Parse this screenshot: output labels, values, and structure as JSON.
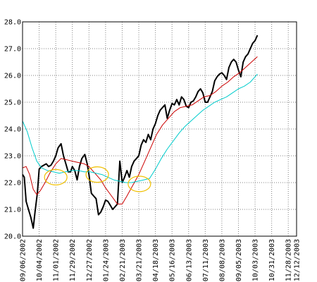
{
  "chart_data": {
    "type": "line",
    "title": "",
    "xlabel": "",
    "ylabel": "",
    "ylim": [
      20.0,
      28.0
    ],
    "yticks": [
      "20.0",
      "21.0",
      "22.0",
      "23.0",
      "24.0",
      "25.0",
      "26.0",
      "27.0",
      "28.0"
    ],
    "xlim": [
      "2002-09-06",
      "2003-12-12"
    ],
    "xticks": [
      {
        "label": "09/06/2002",
        "date": "2002-09-06"
      },
      {
        "label": "10/04/2002",
        "date": "2002-10-04"
      },
      {
        "label": "11/01/2002",
        "date": "2002-11-01"
      },
      {
        "label": "11/29/2002",
        "date": "2002-11-29"
      },
      {
        "label": "12/27/2002",
        "date": "2002-12-27"
      },
      {
        "label": "01/24/2003",
        "date": "2003-01-24"
      },
      {
        "label": "02/21/2003",
        "date": "2003-02-21"
      },
      {
        "label": "03/21/2003",
        "date": "2003-03-21"
      },
      {
        "label": "04/18/2003",
        "date": "2003-04-18"
      },
      {
        "label": "05/16/2003",
        "date": "2003-05-16"
      },
      {
        "label": "06/13/2003",
        "date": "2003-06-13"
      },
      {
        "label": "07/11/2003",
        "date": "2003-07-11"
      },
      {
        "label": "08/08/2003",
        "date": "2003-08-08"
      },
      {
        "label": "09/05/2003",
        "date": "2003-09-05"
      },
      {
        "label": "10/03/2003",
        "date": "2003-10-03"
      },
      {
        "label": "10/31/2003",
        "date": "2003-10-31"
      },
      {
        "label": "11/28/2003",
        "date": "2003-11-28"
      },
      {
        "label": "12/12/2003",
        "date": "2003-12-12"
      }
    ],
    "grid": true,
    "legend": "none",
    "series": [
      {
        "color": "#000000",
        "width": 2,
        "points": [
          [
            "2002-09-06",
            22.3
          ],
          [
            "2002-09-09",
            22.2
          ],
          [
            "2002-09-12",
            21.3
          ],
          [
            "2002-09-16",
            21.0
          ],
          [
            "2002-09-20",
            20.7
          ],
          [
            "2002-09-24",
            20.3
          ],
          [
            "2002-09-27",
            20.9
          ],
          [
            "2002-10-01",
            21.6
          ],
          [
            "2002-10-04",
            22.5
          ],
          [
            "2002-10-08",
            22.6
          ],
          [
            "2002-10-12",
            22.65
          ],
          [
            "2002-10-16",
            22.7
          ],
          [
            "2002-10-20",
            22.6
          ],
          [
            "2002-10-24",
            22.65
          ],
          [
            "2002-10-28",
            22.8
          ],
          [
            "2002-11-01",
            23.0
          ],
          [
            "2002-11-05",
            23.3
          ],
          [
            "2002-11-10",
            23.45
          ],
          [
            "2002-11-14",
            23.0
          ],
          [
            "2002-11-18",
            22.7
          ],
          [
            "2002-11-22",
            22.4
          ],
          [
            "2002-11-26",
            22.4
          ],
          [
            "2002-11-29",
            22.6
          ],
          [
            "2002-12-03",
            22.45
          ],
          [
            "2002-12-07",
            22.1
          ],
          [
            "2002-12-11",
            22.6
          ],
          [
            "2002-12-15",
            22.9
          ],
          [
            "2002-12-20",
            23.05
          ],
          [
            "2002-12-24",
            22.7
          ],
          [
            "2002-12-27",
            22.3
          ],
          [
            "2002-12-31",
            21.6
          ],
          [
            "2003-01-04",
            21.5
          ],
          [
            "2003-01-08",
            21.4
          ],
          [
            "2003-01-12",
            20.8
          ],
          [
            "2003-01-16",
            20.9
          ],
          [
            "2003-01-20",
            21.1
          ],
          [
            "2003-01-24",
            21.35
          ],
          [
            "2003-01-28",
            21.3
          ],
          [
            "2003-02-01",
            21.15
          ],
          [
            "2003-02-05",
            21.0
          ],
          [
            "2003-02-09",
            21.1
          ],
          [
            "2003-02-13",
            21.2
          ],
          [
            "2003-02-17",
            22.8
          ],
          [
            "2003-02-21",
            22.0
          ],
          [
            "2003-02-25",
            22.2
          ],
          [
            "2003-03-01",
            22.45
          ],
          [
            "2003-03-05",
            22.2
          ],
          [
            "2003-03-09",
            22.6
          ],
          [
            "2003-03-13",
            22.8
          ],
          [
            "2003-03-17",
            22.9
          ],
          [
            "2003-03-21",
            23.0
          ],
          [
            "2003-03-25",
            23.4
          ],
          [
            "2003-03-29",
            23.6
          ],
          [
            "2003-04-02",
            23.5
          ],
          [
            "2003-04-06",
            23.8
          ],
          [
            "2003-04-10",
            23.6
          ],
          [
            "2003-04-14",
            24.0
          ],
          [
            "2003-04-18",
            24.2
          ],
          [
            "2003-04-22",
            24.5
          ],
          [
            "2003-04-26",
            24.7
          ],
          [
            "2003-04-30",
            24.8
          ],
          [
            "2003-05-04",
            24.9
          ],
          [
            "2003-05-08",
            24.4
          ],
          [
            "2003-05-12",
            24.7
          ],
          [
            "2003-05-16",
            24.95
          ],
          [
            "2003-05-20",
            24.9
          ],
          [
            "2003-05-24",
            25.1
          ],
          [
            "2003-05-28",
            24.9
          ],
          [
            "2003-06-01",
            25.2
          ],
          [
            "2003-06-05",
            25.1
          ],
          [
            "2003-06-09",
            24.85
          ],
          [
            "2003-06-13",
            24.8
          ],
          [
            "2003-06-17",
            25.0
          ],
          [
            "2003-06-21",
            25.05
          ],
          [
            "2003-06-25",
            25.2
          ],
          [
            "2003-06-29",
            25.4
          ],
          [
            "2003-07-03",
            25.5
          ],
          [
            "2003-07-07",
            25.35
          ],
          [
            "2003-07-11",
            25.0
          ],
          [
            "2003-07-15",
            25.0
          ],
          [
            "2003-07-19",
            25.2
          ],
          [
            "2003-07-23",
            25.4
          ],
          [
            "2003-07-27",
            25.8
          ],
          [
            "2003-07-31",
            25.95
          ],
          [
            "2003-08-04",
            26.05
          ],
          [
            "2003-08-08",
            26.1
          ],
          [
            "2003-08-12",
            26.0
          ],
          [
            "2003-08-16",
            25.85
          ],
          [
            "2003-08-20",
            26.3
          ],
          [
            "2003-08-24",
            26.5
          ],
          [
            "2003-08-28",
            26.6
          ],
          [
            "2003-09-01",
            26.5
          ],
          [
            "2003-09-05",
            26.2
          ],
          [
            "2003-09-09",
            25.95
          ],
          [
            "2003-09-13",
            26.5
          ],
          [
            "2003-09-17",
            26.7
          ],
          [
            "2003-09-21",
            26.8
          ],
          [
            "2003-09-25",
            27.0
          ],
          [
            "2003-09-29",
            27.2
          ],
          [
            "2003-10-03",
            27.3
          ],
          [
            "2003-10-07",
            27.5
          ]
        ]
      },
      {
        "color": "#cc0000",
        "width": 1,
        "points": [
          [
            "2002-09-06",
            22.55
          ],
          [
            "2002-09-12",
            22.6
          ],
          [
            "2002-09-18",
            22.3
          ],
          [
            "2002-09-24",
            21.75
          ],
          [
            "2002-09-30",
            21.55
          ],
          [
            "2002-10-06",
            21.7
          ],
          [
            "2002-10-14",
            22.0
          ],
          [
            "2002-10-22",
            22.35
          ],
          [
            "2002-11-01",
            22.7
          ],
          [
            "2002-11-10",
            22.9
          ],
          [
            "2002-11-20",
            22.85
          ],
          [
            "2002-11-29",
            22.8
          ],
          [
            "2002-12-09",
            22.75
          ],
          [
            "2002-12-19",
            22.7
          ],
          [
            "2002-12-27",
            22.6
          ],
          [
            "2003-01-06",
            22.35
          ],
          [
            "2003-01-16",
            22.1
          ],
          [
            "2003-01-24",
            21.8
          ],
          [
            "2003-02-03",
            21.5
          ],
          [
            "2003-02-13",
            21.2
          ],
          [
            "2003-02-21",
            21.2
          ],
          [
            "2003-03-01",
            21.5
          ],
          [
            "2003-03-11",
            21.9
          ],
          [
            "2003-03-21",
            22.3
          ],
          [
            "2003-03-31",
            22.8
          ],
          [
            "2003-04-10",
            23.3
          ],
          [
            "2003-04-20",
            23.8
          ],
          [
            "2003-04-30",
            24.15
          ],
          [
            "2003-05-10",
            24.4
          ],
          [
            "2003-05-20",
            24.65
          ],
          [
            "2003-05-30",
            24.8
          ],
          [
            "2003-06-09",
            24.85
          ],
          [
            "2003-06-19",
            24.9
          ],
          [
            "2003-06-29",
            25.05
          ],
          [
            "2003-07-09",
            25.2
          ],
          [
            "2003-07-19",
            25.25
          ],
          [
            "2003-07-29",
            25.4
          ],
          [
            "2003-08-08",
            25.6
          ],
          [
            "2003-08-18",
            25.75
          ],
          [
            "2003-08-28",
            25.95
          ],
          [
            "2003-09-07",
            26.1
          ],
          [
            "2003-09-17",
            26.3
          ],
          [
            "2003-09-27",
            26.5
          ],
          [
            "2003-10-07",
            26.7
          ]
        ]
      },
      {
        "color": "#00cccc",
        "width": 1,
        "points": [
          [
            "2002-09-06",
            24.3
          ],
          [
            "2002-09-14",
            23.9
          ],
          [
            "2002-09-22",
            23.3
          ],
          [
            "2002-09-30",
            22.8
          ],
          [
            "2002-10-08",
            22.55
          ],
          [
            "2002-10-18",
            22.45
          ],
          [
            "2002-10-28",
            22.4
          ],
          [
            "2002-11-07",
            22.35
          ],
          [
            "2002-11-17",
            22.4
          ],
          [
            "2002-11-29",
            22.45
          ],
          [
            "2002-12-09",
            22.45
          ],
          [
            "2002-12-19",
            22.4
          ],
          [
            "2002-12-29",
            22.4
          ],
          [
            "2003-01-08",
            22.35
          ],
          [
            "2003-01-18",
            22.3
          ],
          [
            "2003-01-28",
            22.2
          ],
          [
            "2003-02-07",
            22.1
          ],
          [
            "2003-02-17",
            22.05
          ],
          [
            "2003-02-27",
            22.0
          ],
          [
            "2003-03-09",
            22.0
          ],
          [
            "2003-03-19",
            22.05
          ],
          [
            "2003-03-29",
            22.1
          ],
          [
            "2003-04-08",
            22.15
          ],
          [
            "2003-04-18",
            22.5
          ],
          [
            "2003-04-28",
            22.9
          ],
          [
            "2003-05-08",
            23.25
          ],
          [
            "2003-05-18",
            23.55
          ],
          [
            "2003-05-28",
            23.85
          ],
          [
            "2003-06-07",
            24.1
          ],
          [
            "2003-06-17",
            24.3
          ],
          [
            "2003-06-27",
            24.5
          ],
          [
            "2003-07-07",
            24.7
          ],
          [
            "2003-07-17",
            24.85
          ],
          [
            "2003-07-27",
            25.0
          ],
          [
            "2003-08-06",
            25.1
          ],
          [
            "2003-08-16",
            25.2
          ],
          [
            "2003-08-26",
            25.35
          ],
          [
            "2003-09-05",
            25.5
          ],
          [
            "2003-09-15",
            25.6
          ],
          [
            "2003-09-25",
            25.75
          ],
          [
            "2003-10-07",
            26.05
          ]
        ]
      }
    ],
    "annotations": [
      {
        "shape": "ellipse",
        "color": "#f0c000",
        "at": [
          "2002-11-01",
          22.2
        ]
      },
      {
        "shape": "ellipse",
        "color": "#f0c000",
        "at": [
          "2003-01-10",
          22.3
        ]
      },
      {
        "shape": "ellipse",
        "color": "#f0c000",
        "at": [
          "2003-03-22",
          21.95
        ]
      }
    ]
  }
}
